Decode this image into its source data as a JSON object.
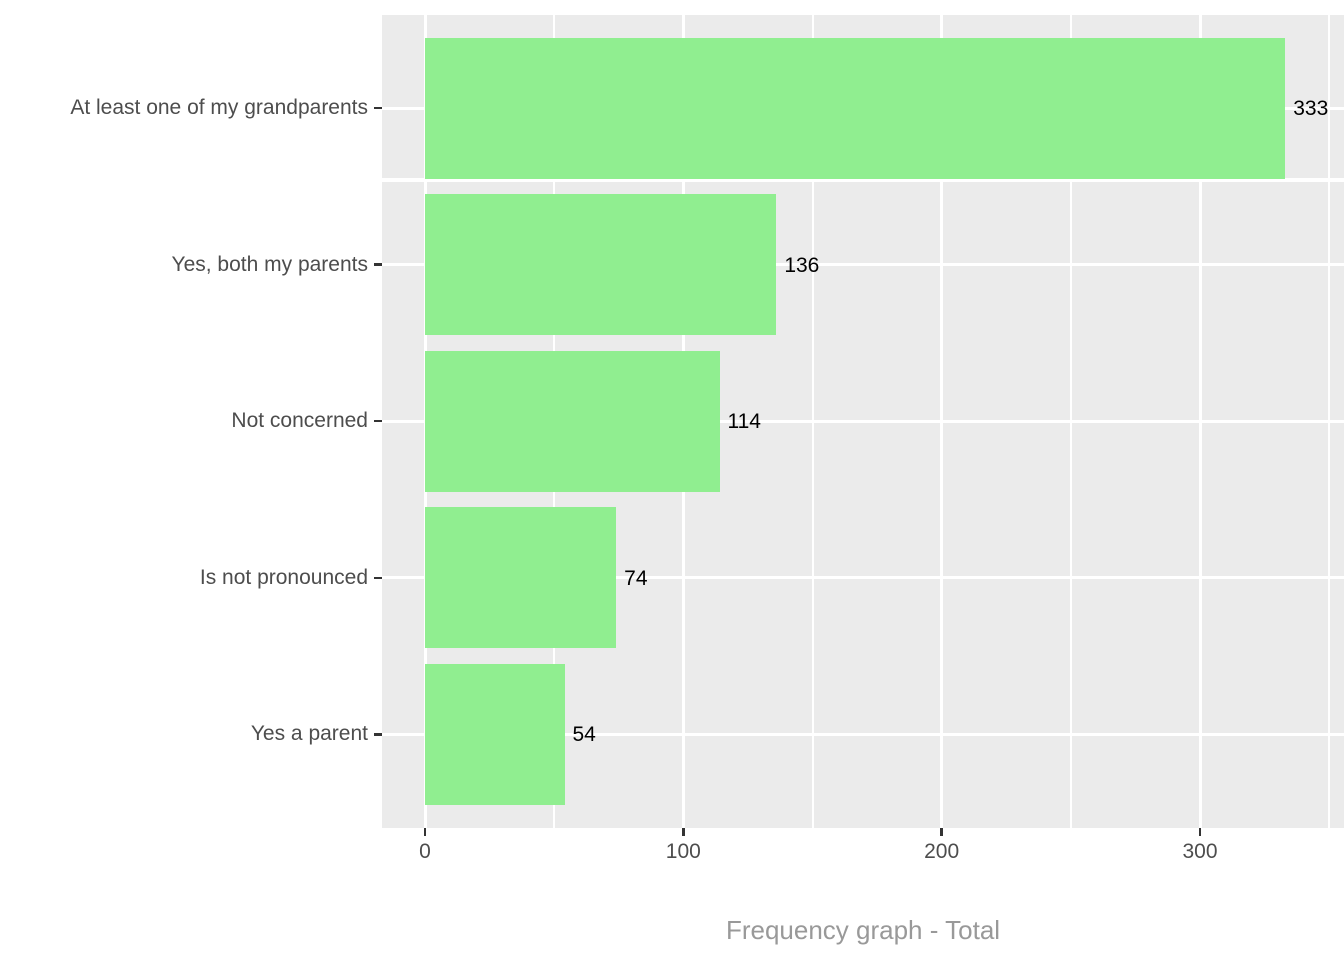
{
  "chart_data": {
    "type": "bar",
    "orientation": "horizontal",
    "title": "",
    "xlabel": "Frequency graph - Total",
    "ylabel": "",
    "categories": [
      "At least one of my grandparents",
      "Yes, both my parents",
      "Not concerned",
      "Is not pronounced",
      "Yes a parent"
    ],
    "values": [
      333,
      136,
      114,
      74,
      54
    ],
    "bar_value_labels": [
      "333",
      "136",
      "114",
      "74",
      "54"
    ],
    "x_tick_labels": [
      "0",
      "100",
      "200",
      "300"
    ],
    "x_tick_values": [
      0,
      100,
      200,
      300
    ],
    "x_minor_tick_values": [
      50,
      150,
      250,
      350
    ],
    "xlim": [
      -16.6,
      356
    ],
    "grid": "white major and minor gridlines on gray panel",
    "legend_position": "none",
    "colors": {
      "bar_fill": "#90EE90",
      "panel_background": "#EBEBEB",
      "gridline": "#FFFFFF",
      "tick_mark": "#333333",
      "axis_tick_text": "#4D4D4D",
      "bar_value_text": "#000000",
      "axis_title_text": "#999999",
      "figure_background": "#FFFFFF"
    }
  }
}
